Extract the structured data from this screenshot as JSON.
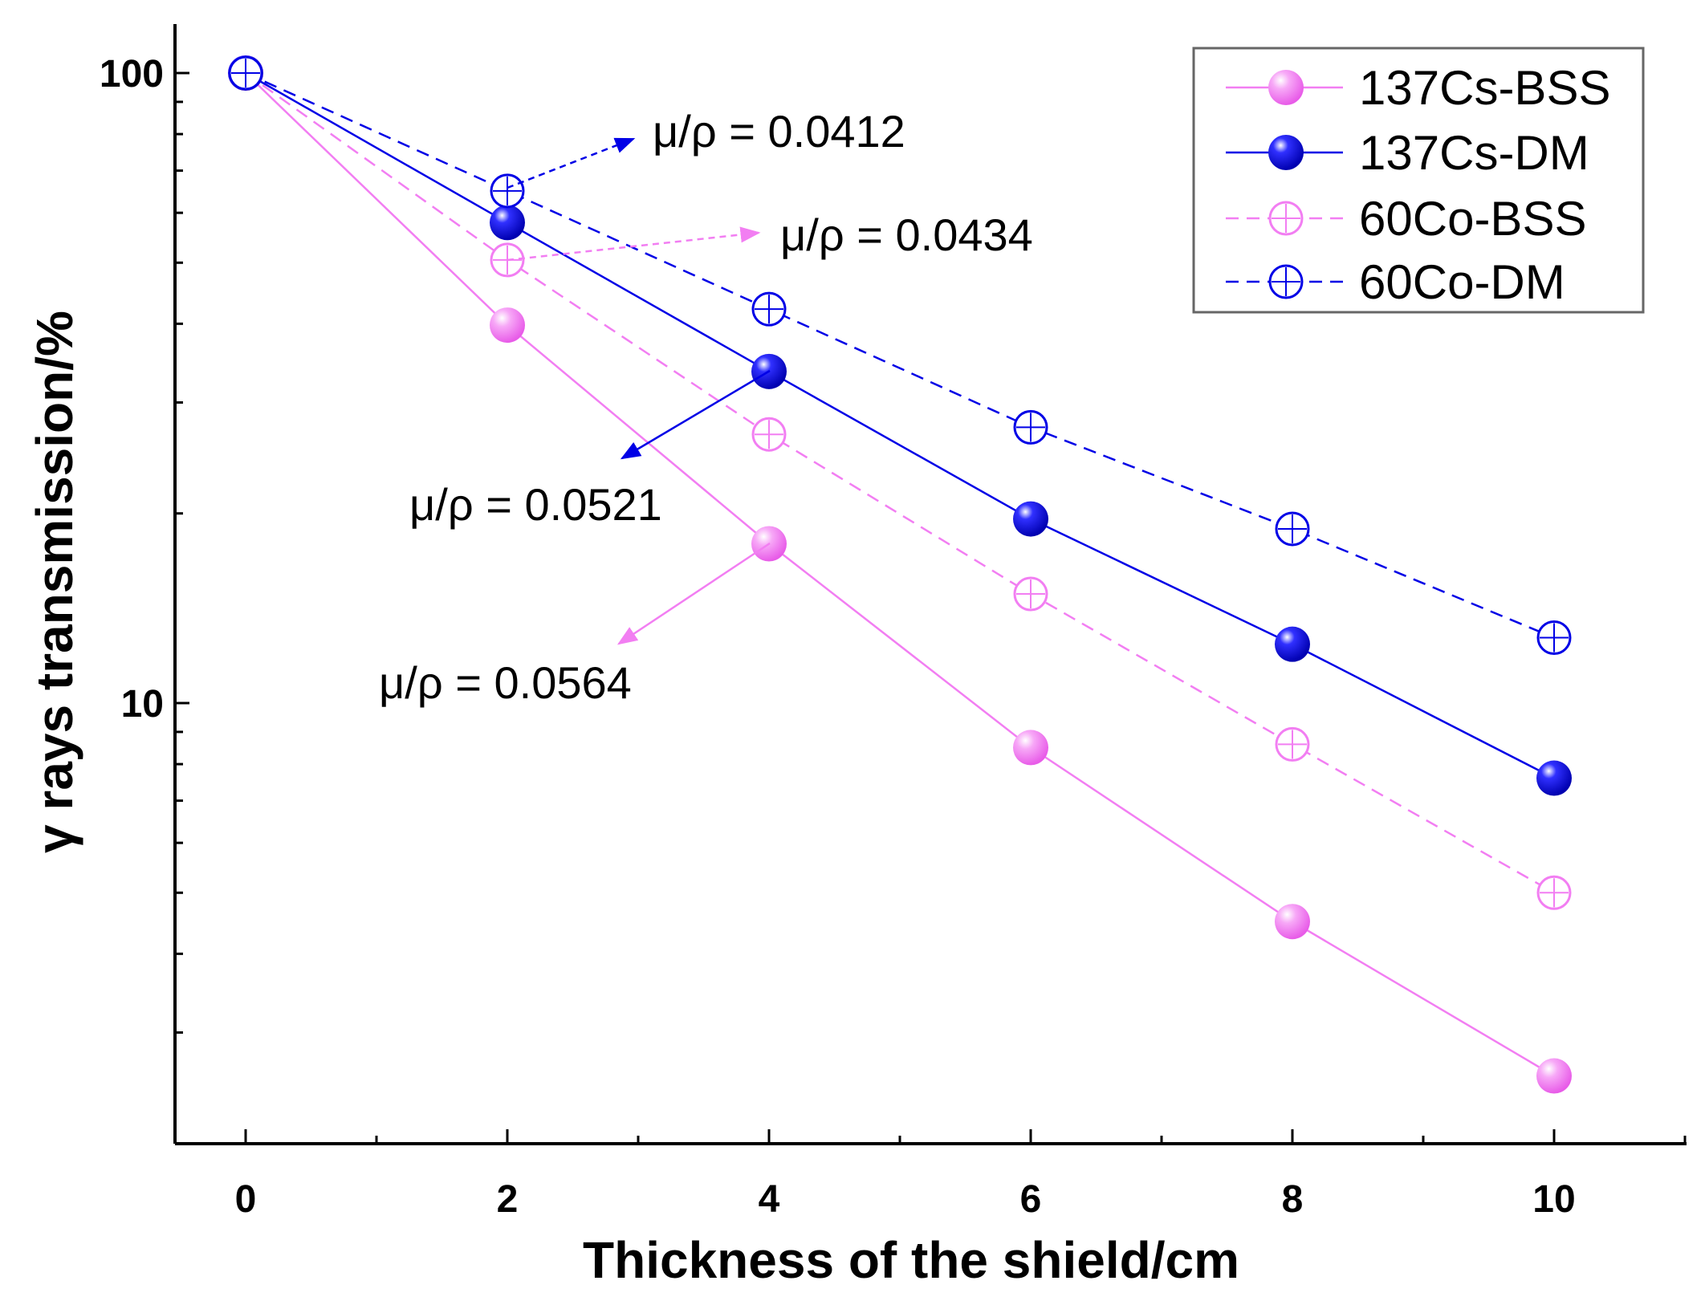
{
  "chart_data": {
    "type": "line",
    "title": "",
    "xlabel": "Thickness of the shield/cm",
    "ylabel": "γ rays transmission/%",
    "xlim": [
      -0.54,
      11.0
    ],
    "ylim": [
      2,
      120
    ],
    "yscale": "log",
    "x": [
      0,
      2,
      4,
      6,
      8,
      10
    ],
    "x_ticks": [
      "0",
      "2",
      "4",
      "6",
      "8",
      "10"
    ],
    "y_ticks": [
      "10",
      "100"
    ],
    "grid": false,
    "legend_position": "top-right",
    "series": [
      {
        "name": "137Cs-BSS",
        "color": "#f27ef2",
        "style": "solid",
        "marker": "filled",
        "values": [
          100,
          39.8,
          17.9,
          8.5,
          4.5,
          2.56
        ]
      },
      {
        "name": "137Cs-DM",
        "color": "#0000e6",
        "style": "solid",
        "marker": "filled",
        "values": [
          100,
          57.9,
          33.6,
          19.6,
          12.4,
          7.6
        ]
      },
      {
        "name": "60Co-BSS",
        "color": "#f27ef2",
        "style": "dashed",
        "marker": "open",
        "values": [
          100,
          50.5,
          26.7,
          14.9,
          8.6,
          5.0
        ]
      },
      {
        "name": "60Co-DM",
        "color": "#0000e6",
        "style": "dashed",
        "marker": "open",
        "values": [
          100,
          65.0,
          42.2,
          27.4,
          18.9,
          12.7
        ]
      }
    ],
    "annotations": [
      {
        "text": "μ/ρ = 0.0412",
        "series": "60Co-DM"
      },
      {
        "text": "μ/ρ = 0.0434",
        "series": "60Co-BSS"
      },
      {
        "text": "μ/ρ = 0.0521",
        "series": "137Cs-DM"
      },
      {
        "text": "μ/ρ = 0.0564",
        "series": "137Cs-BSS"
      }
    ]
  }
}
